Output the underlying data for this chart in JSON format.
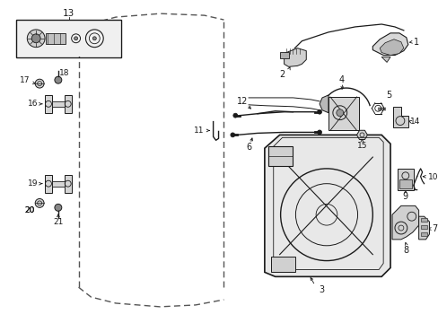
{
  "bg_color": "#ffffff",
  "lc": "#1a1a1a",
  "dc": "#555555",
  "figsize": [
    4.89,
    3.6
  ],
  "dpi": 100
}
